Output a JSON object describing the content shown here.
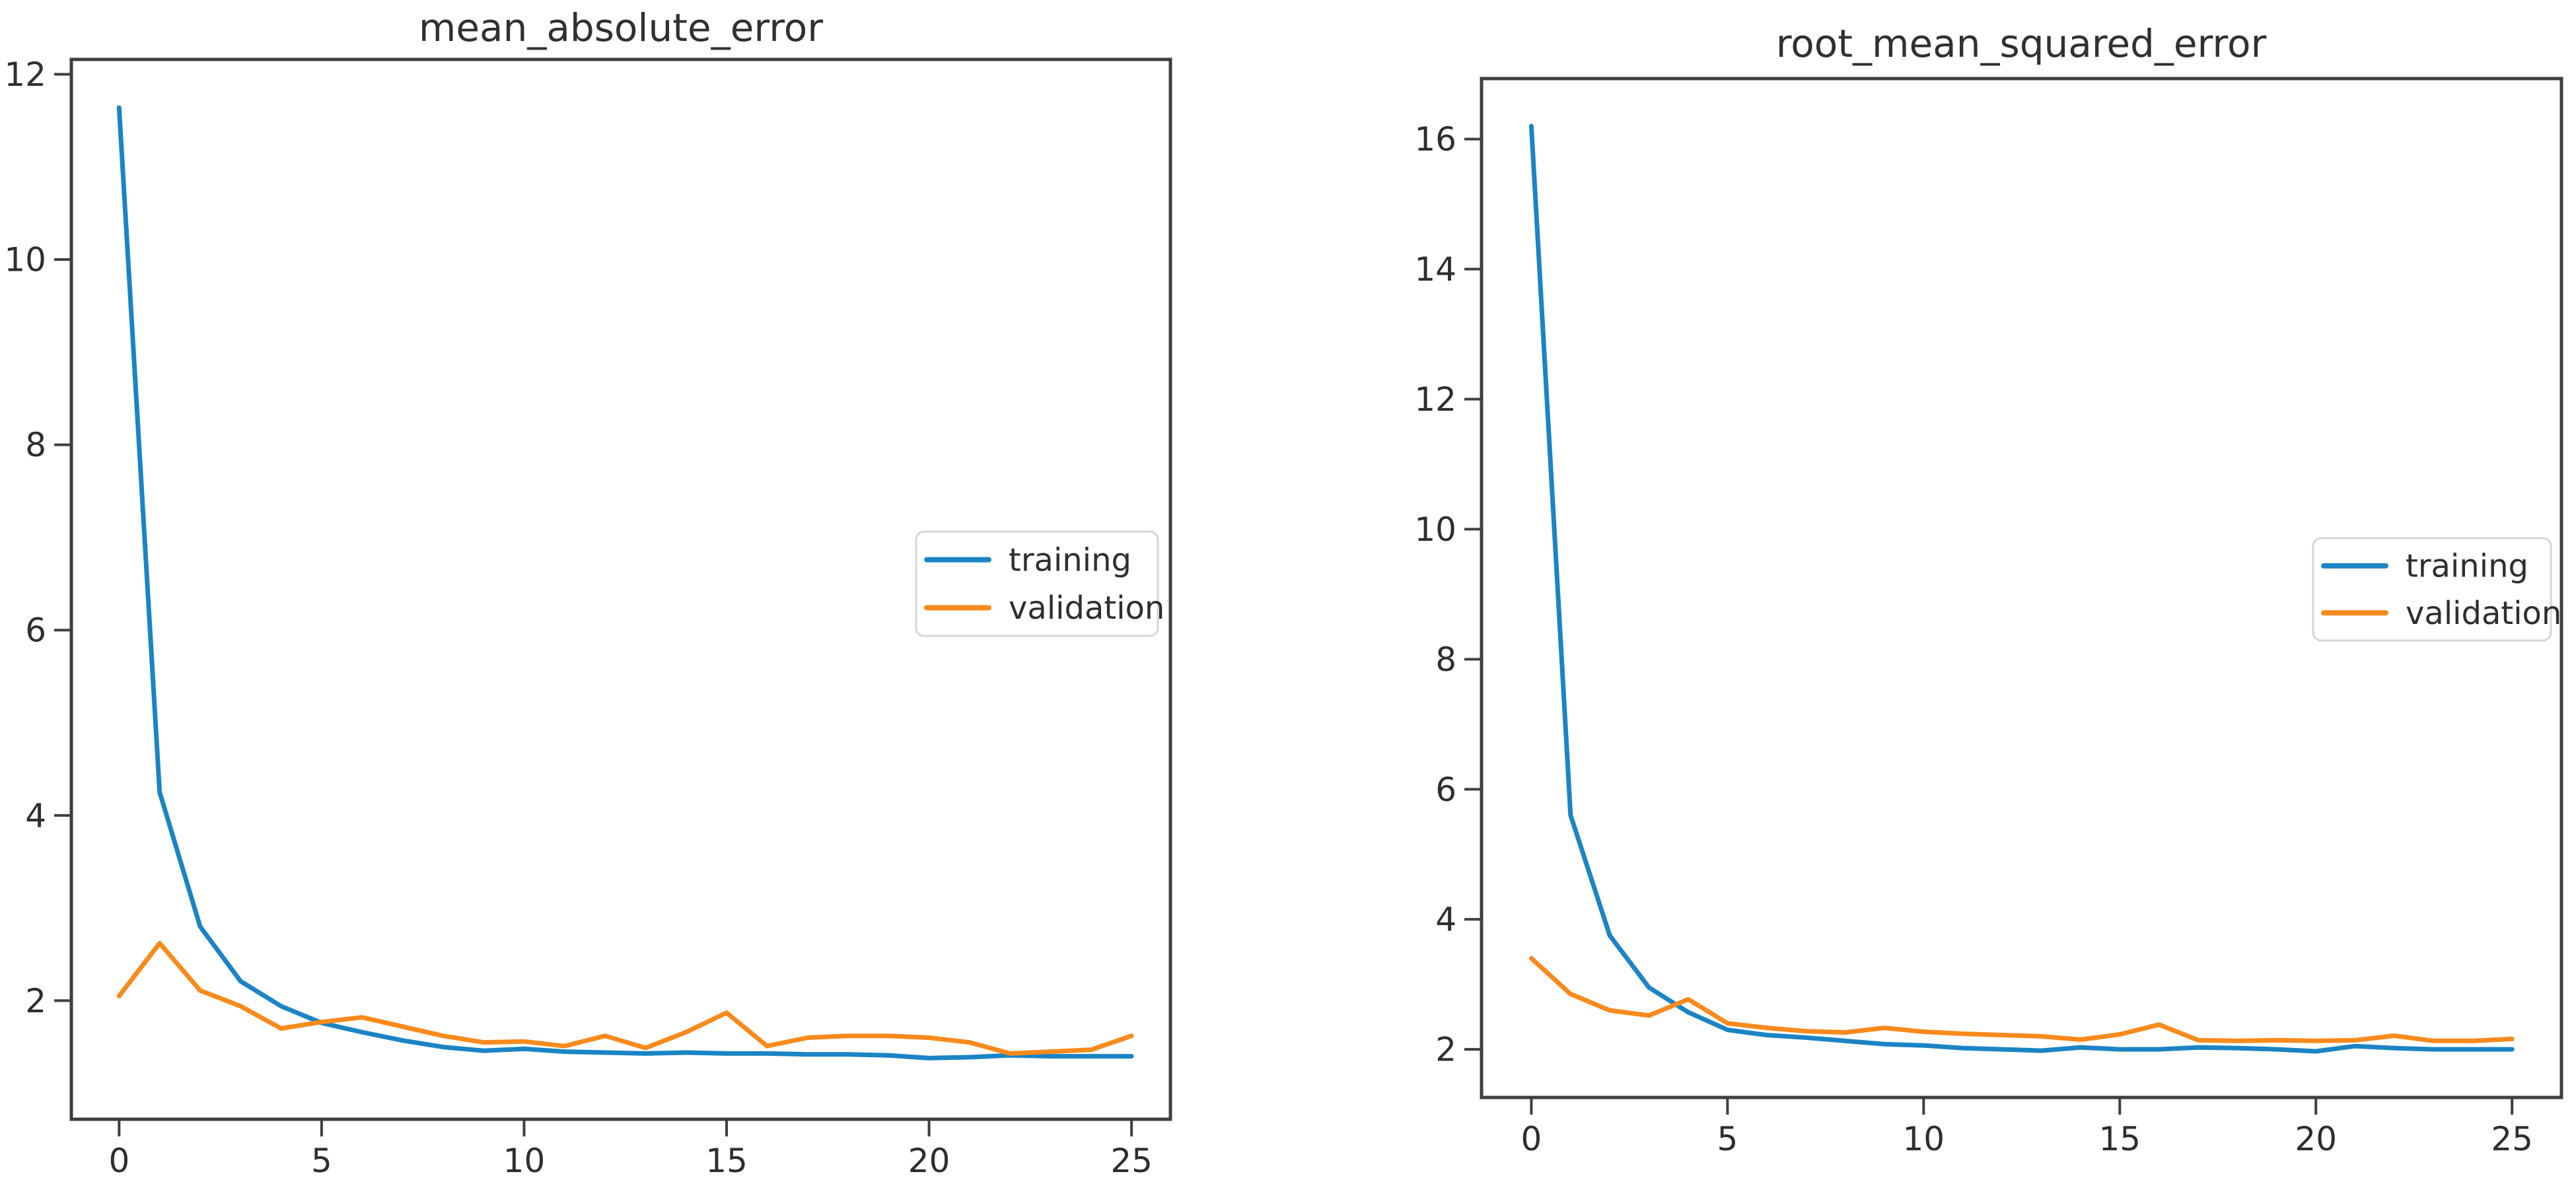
{
  "page": {
    "background": "#ffffff"
  },
  "style": {
    "training_color": "#1b84c4",
    "validation_color": "#f98a1c",
    "axis_color": "#3f3f3f",
    "tick_text_color": "#2e2e2e",
    "title_text_color": "#303030",
    "legend_border_color": "#d6d6d6",
    "legend_bg_color": "#ffffff",
    "legend_text_color": "#2b2b2b"
  },
  "chart_data": [
    {
      "type": "line",
      "title": "mean_absolute_error",
      "xlabel": "",
      "ylabel": "",
      "grid": false,
      "x": [
        0,
        1,
        2,
        3,
        4,
        5,
        6,
        7,
        8,
        9,
        10,
        11,
        12,
        13,
        14,
        15,
        16,
        17,
        18,
        19,
        20,
        21,
        22,
        23,
        24,
        25
      ],
      "series": [
        {
          "name": "training",
          "values": [
            11.64,
            4.25,
            2.8,
            2.21,
            1.94,
            1.76,
            1.66,
            1.57,
            1.5,
            1.46,
            1.48,
            1.45,
            1.44,
            1.43,
            1.44,
            1.43,
            1.43,
            1.42,
            1.42,
            1.41,
            1.38,
            1.39,
            1.41,
            1.4,
            1.4,
            1.4
          ]
        },
        {
          "name": "validation",
          "values": [
            2.05,
            2.62,
            2.11,
            1.94,
            1.7,
            1.77,
            1.82,
            1.72,
            1.62,
            1.55,
            1.56,
            1.51,
            1.62,
            1.49,
            1.66,
            1.87,
            1.51,
            1.6,
            1.62,
            1.62,
            1.6,
            1.55,
            1.43,
            1.45,
            1.47,
            1.62
          ]
        }
      ],
      "xticks": [
        0,
        5,
        10,
        15,
        20,
        25
      ],
      "yticks": [
        2,
        4,
        6,
        8,
        10,
        12
      ],
      "xlim": [
        -1.18,
        25.96
      ],
      "ylim": [
        0.72,
        12.16
      ],
      "legend": {
        "position": "right-center",
        "entries": [
          "training",
          "validation"
        ]
      }
    },
    {
      "type": "line",
      "title": "root_mean_squared_error",
      "xlabel": "",
      "ylabel": "",
      "grid": false,
      "x": [
        0,
        1,
        2,
        3,
        4,
        5,
        6,
        7,
        8,
        9,
        10,
        11,
        12,
        13,
        14,
        15,
        16,
        17,
        18,
        19,
        20,
        21,
        22,
        23,
        24,
        25
      ],
      "series": [
        {
          "name": "training",
          "values": [
            16.2,
            5.6,
            3.75,
            2.95,
            2.57,
            2.3,
            2.22,
            2.18,
            2.13,
            2.08,
            2.06,
            2.02,
            2.0,
            1.98,
            2.03,
            2.0,
            2.0,
            2.03,
            2.02,
            2.0,
            1.97,
            2.05,
            2.02,
            2.0,
            2.0,
            2.0
          ]
        },
        {
          "name": "validation",
          "values": [
            3.4,
            2.85,
            2.6,
            2.52,
            2.77,
            2.4,
            2.33,
            2.28,
            2.26,
            2.33,
            2.27,
            2.24,
            2.22,
            2.2,
            2.15,
            2.23,
            2.38,
            2.14,
            2.13,
            2.14,
            2.13,
            2.14,
            2.21,
            2.13,
            2.13,
            2.16
          ]
        }
      ],
      "xticks": [
        0,
        5,
        10,
        15,
        20,
        25
      ],
      "yticks": [
        2,
        4,
        6,
        8,
        10,
        12,
        14,
        16
      ],
      "xlim": [
        -1.27,
        26.26
      ],
      "ylim": [
        1.26,
        16.93
      ],
      "legend": {
        "position": "right-center",
        "entries": [
          "training",
          "validation"
        ]
      }
    }
  ]
}
